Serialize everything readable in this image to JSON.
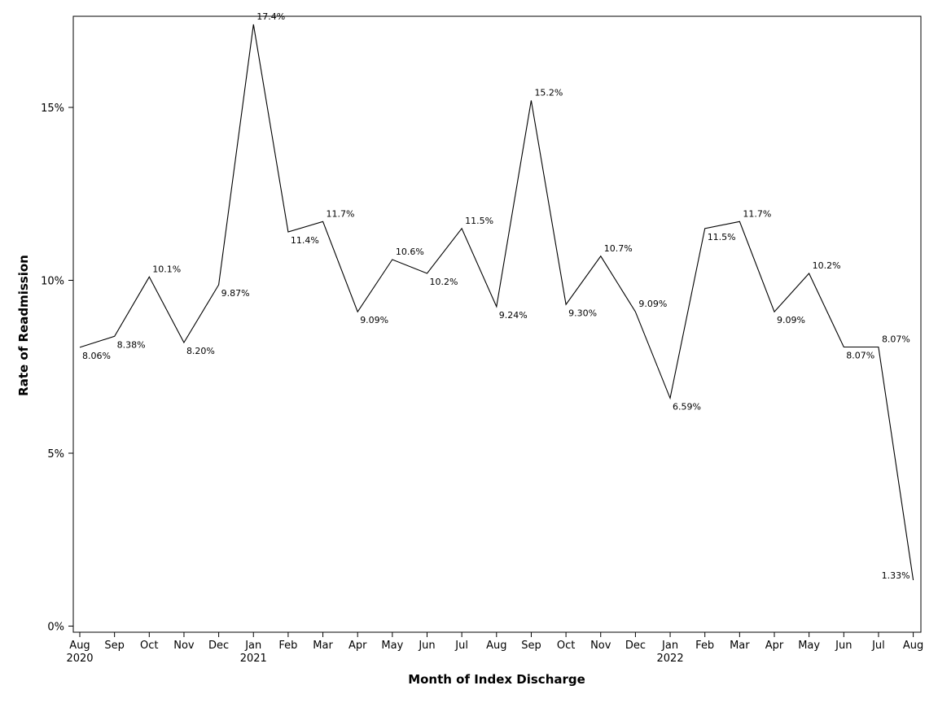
{
  "chart_data": {
    "type": "line",
    "title": "",
    "xlabel": "Month of Index Discharge",
    "ylabel": "Rate of Readmission",
    "ylim": [
      0,
      17.6
    ],
    "yticks": [
      {
        "value": 0,
        "label": "0%"
      },
      {
        "value": 5,
        "label": "5%"
      },
      {
        "value": 10,
        "label": "10%"
      },
      {
        "value": 15,
        "label": "15%"
      }
    ],
    "categories": [
      "Aug",
      "Sep",
      "Oct",
      "Nov",
      "Dec",
      "Jan",
      "Feb",
      "Mar",
      "Apr",
      "May",
      "Jun",
      "Jul",
      "Aug",
      "Sep",
      "Oct",
      "Nov",
      "Dec",
      "Jan",
      "Feb",
      "Mar",
      "Apr",
      "May",
      "Jun",
      "Jul",
      "Aug"
    ],
    "year_labels": [
      {
        "index": 0,
        "label": "2020"
      },
      {
        "index": 5,
        "label": "2021"
      },
      {
        "index": 17,
        "label": "2022"
      }
    ],
    "values": [
      8.06,
      8.38,
      10.1,
      8.2,
      9.87,
      17.4,
      11.4,
      11.7,
      9.09,
      10.6,
      10.2,
      11.5,
      9.24,
      15.2,
      9.3,
      10.7,
      9.09,
      6.59,
      11.5,
      11.7,
      9.09,
      10.2,
      8.07,
      8.07,
      1.33
    ],
    "data_labels": [
      "8.06%",
      "8.38%",
      "10.1%",
      "8.20%",
      "9.87%",
      "17.4%",
      "11.4%",
      "11.7%",
      "9.09%",
      "10.6%",
      "10.2%",
      "11.5%",
      "9.24%",
      "15.2%",
      "9.30%",
      "10.7%",
      "9.09%",
      "6.59%",
      "11.5%",
      "11.7%",
      "9.09%",
      "10.2%",
      "8.07%",
      "8.07%",
      "1.33%"
    ],
    "grid": false,
    "legend": "none"
  }
}
